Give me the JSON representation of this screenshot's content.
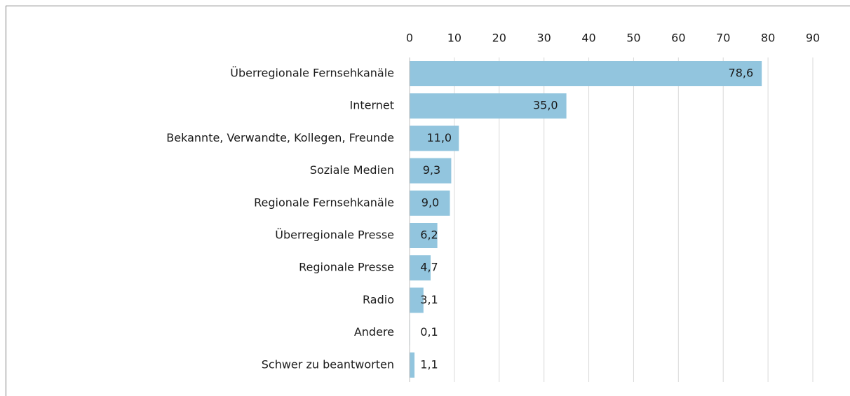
{
  "chart_data": {
    "type": "bar",
    "orientation": "horizontal",
    "categories": [
      "Überregionale Fernsehkanäle",
      "Internet",
      "Bekannte, Verwandte, Kollegen, Freunde",
      "Soziale Medien",
      "Regionale Fernsehkanäle",
      "Überregionale Presse",
      "Regionale Presse",
      "Radio",
      "Andere",
      "Schwer zu beantworten"
    ],
    "values": [
      78.6,
      35.0,
      11.0,
      9.3,
      9.0,
      6.2,
      4.7,
      3.1,
      0.1,
      1.1
    ],
    "value_labels": [
      "78,6",
      "35,0",
      "11,0",
      "9,3",
      "9,0",
      "6,2",
      "4,7",
      "3,1",
      "0,1",
      "1,1"
    ],
    "color": "#92c5de",
    "xlim": [
      0,
      90
    ],
    "xticks": [
      0,
      10,
      20,
      30,
      40,
      50,
      60,
      70,
      80,
      90
    ],
    "grid": true
  }
}
